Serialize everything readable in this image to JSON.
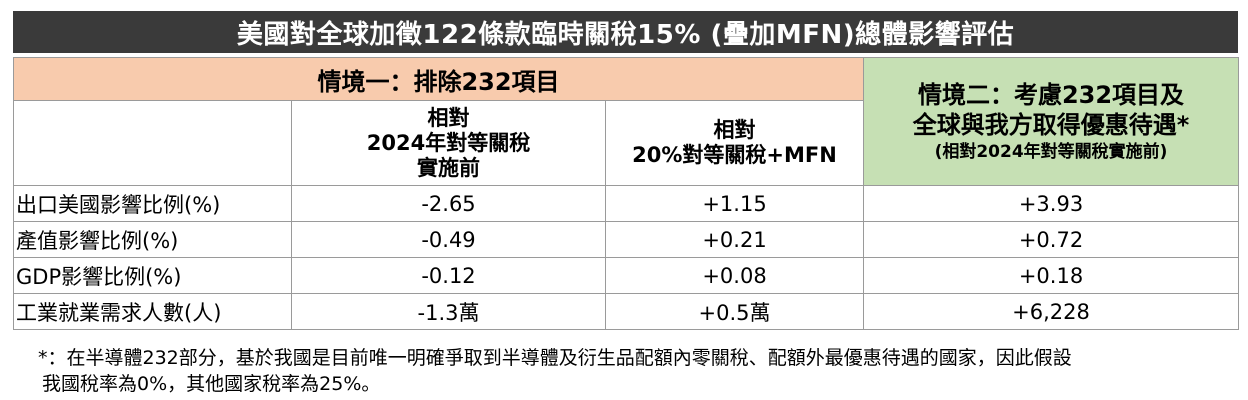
{
  "title": "美國對全球加徵122條款臨時關稅15% (疊加MFN)總體影響評估",
  "scenario1": {
    "label": "情境一：排除232項目",
    "col1": [
      "相對",
      "2024年對等關稅",
      "實施前"
    ],
    "col2": [
      "相對",
      "20%對等關稅+MFN"
    ]
  },
  "scenario2": {
    "line1": "情境二：考慮232項目及",
    "line2": "全球與我方取得優惠待遇*",
    "line3": "(相對2024年對等關稅實施前)"
  },
  "rows": [
    {
      "label": "出口美國影響比例(%)",
      "v1": "-2.65",
      "v2": "+1.15",
      "v3": "+3.93"
    },
    {
      "label": "產值影響比例(%)",
      "v1": "-0.49",
      "v2": "+0.21",
      "v3": "+0.72"
    },
    {
      "label": "GDP影響比例(%)",
      "v1": "-0.12",
      "v2": "+0.08",
      "v3": "+0.18"
    },
    {
      "label": "工業就業需求人數(人)",
      "v1": "-1.3萬",
      "v2": "+0.5萬",
      "v3": "+6,228"
    }
  ],
  "note": {
    "line1": "*：在半導體232部分，基於我國是目前唯一明確爭取到半導體及衍生品配額內零關稅、配額外最優惠待遇的國家，因此假設",
    "line2": "我國稅率為0%，其他國家稅率為25%。"
  },
  "colors": {
    "title_bg": "#3a3a3a",
    "scenario1_bg": "#f8cbad",
    "scenario2_bg": "#c6e0b4"
  }
}
